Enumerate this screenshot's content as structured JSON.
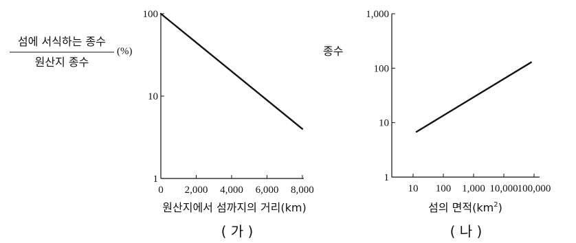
{
  "chart_data": [
    {
      "type": "line",
      "panel_label": "( 가 )",
      "xlabel": "원산지에서 섬까지의 거리(km)",
      "ylabel": {
        "numerator": "섬에 서식하는 종수",
        "denominator": "원산지 종수",
        "unit": "(%)"
      },
      "x_scale": "linear",
      "y_scale": "log",
      "xlim": [
        0,
        8000
      ],
      "ylim": [
        1,
        100
      ],
      "x_ticks": [
        0,
        2000,
        4000,
        6000,
        8000
      ],
      "x_tick_labels": [
        "0",
        "2,000",
        "4,000",
        "6,000",
        "8,000"
      ],
      "y_ticks": [
        1,
        10,
        100
      ],
      "y_tick_labels": [
        "1",
        "10",
        "100"
      ],
      "grid": false,
      "series": [
        {
          "x": [
            0,
            8000
          ],
          "y": [
            100,
            4
          ]
        }
      ]
    },
    {
      "type": "line",
      "panel_label": "( 나 )",
      "xlabel": "섬의 면적(km",
      "xlabel_sup": "2",
      "xlabel_close": ")",
      "ylabel": "종수",
      "x_scale": "log",
      "y_scale": "log",
      "xlim": [
        1,
        100000
      ],
      "ylim": [
        1,
        1000
      ],
      "x_ticks": [
        10,
        100,
        1000,
        10000,
        100000
      ],
      "x_tick_labels": [
        "10",
        "100",
        "1,000",
        "10,000",
        "100,000"
      ],
      "y_ticks": [
        1,
        10,
        100,
        1000
      ],
      "y_tick_labels": [
        "1",
        "10",
        "100",
        "1,000"
      ],
      "grid": false,
      "series": [
        {
          "x": [
            13,
            80000
          ],
          "y": [
            6.8,
            128
          ]
        }
      ]
    }
  ]
}
